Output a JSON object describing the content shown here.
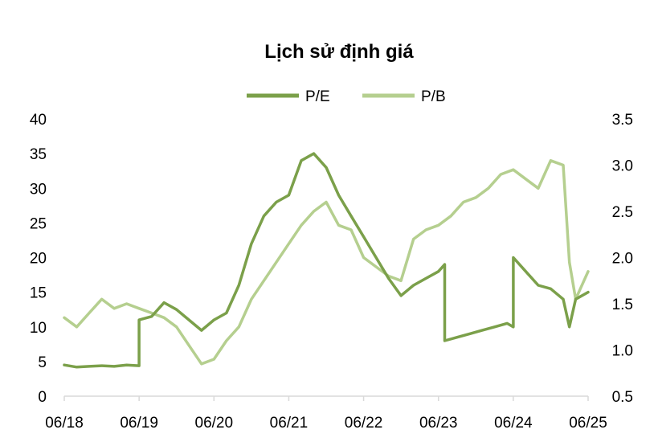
{
  "chart_data": {
    "type": "line",
    "title": "Lịch sử định giá",
    "x_tick_labels": [
      "06/18",
      "06/19",
      "06/20",
      "06/21",
      "06/22",
      "06/23",
      "06/24",
      "06/25"
    ],
    "xlim": [
      "2018-06",
      "2025-06"
    ],
    "y_left": {
      "ticks": [
        "0",
        "5",
        "10",
        "15",
        "20",
        "25",
        "30",
        "35",
        "40"
      ],
      "ylim": [
        0,
        40
      ]
    },
    "y_right": {
      "ticks": [
        "0.5",
        "1.0",
        "1.5",
        "2.0",
        "2.5",
        "3.0",
        "3.5"
      ],
      "ylim": [
        0.5,
        3.5
      ]
    },
    "legend_position": "top-center",
    "grid": false,
    "series": [
      {
        "name": "P/E",
        "axis": "left",
        "color": "#7BA04A",
        "x": [
          "2018-06",
          "2018-08",
          "2018-10",
          "2018-12",
          "2019-02",
          "2019-04",
          "2019-06",
          "2019-06",
          "2019-08",
          "2019-10",
          "2019-12",
          "2020-02",
          "2020-04",
          "2020-06",
          "2020-08",
          "2020-10",
          "2020-12",
          "2021-02",
          "2021-04",
          "2021-06",
          "2021-08",
          "2021-10",
          "2021-12",
          "2022-02",
          "2022-04",
          "2022-06",
          "2022-08",
          "2022-10",
          "2022-12",
          "2023-02",
          "2023-04",
          "2023-06",
          "2023-07",
          "2023-07",
          "2023-09",
          "2023-11",
          "2024-01",
          "2024-03",
          "2024-05",
          "2024-06",
          "2024-06",
          "2024-08",
          "2024-10",
          "2024-12",
          "2025-02",
          "2025-03",
          "2025-04",
          "2025-06"
        ],
        "y": [
          4.5,
          4.2,
          4.3,
          4.4,
          4.3,
          4.5,
          4.4,
          11.0,
          11.5,
          13.5,
          12.5,
          11.0,
          9.5,
          11.0,
          12.0,
          16.0,
          22.0,
          26.0,
          28.0,
          29.0,
          34.0,
          35.0,
          33.0,
          29.0,
          26.0,
          23.0,
          20.0,
          17.0,
          14.5,
          16.0,
          17.0,
          18.0,
          19.0,
          8.0,
          8.5,
          9.0,
          9.5,
          10.0,
          10.5,
          10.0,
          20.0,
          18.0,
          16.0,
          15.5,
          14.0,
          10.0,
          14.0,
          15.0
        ]
      },
      {
        "name": "P/B",
        "axis": "right",
        "color": "#B5CF8F",
        "x": [
          "2018-06",
          "2018-08",
          "2018-10",
          "2018-12",
          "2019-02",
          "2019-04",
          "2019-06",
          "2019-08",
          "2019-10",
          "2019-12",
          "2020-02",
          "2020-04",
          "2020-06",
          "2020-08",
          "2020-10",
          "2020-12",
          "2021-02",
          "2021-04",
          "2021-06",
          "2021-08",
          "2021-10",
          "2021-12",
          "2022-02",
          "2022-04",
          "2022-06",
          "2022-08",
          "2022-10",
          "2022-12",
          "2023-02",
          "2023-04",
          "2023-06",
          "2023-08",
          "2023-10",
          "2023-12",
          "2024-02",
          "2024-04",
          "2024-06",
          "2024-08",
          "2024-10",
          "2024-12",
          "2025-02",
          "2025-03",
          "2025-04",
          "2025-06"
        ],
        "y": [
          1.35,
          1.25,
          1.4,
          1.55,
          1.45,
          1.5,
          1.45,
          1.4,
          1.35,
          1.25,
          1.05,
          0.85,
          0.9,
          1.1,
          1.25,
          1.55,
          1.75,
          1.95,
          2.15,
          2.35,
          2.5,
          2.6,
          2.35,
          2.3,
          2.0,
          1.9,
          1.8,
          1.75,
          2.2,
          2.3,
          2.35,
          2.45,
          2.6,
          2.65,
          2.75,
          2.9,
          2.95,
          2.85,
          2.75,
          3.05,
          3.0,
          1.95,
          1.55,
          1.85
        ]
      }
    ]
  }
}
